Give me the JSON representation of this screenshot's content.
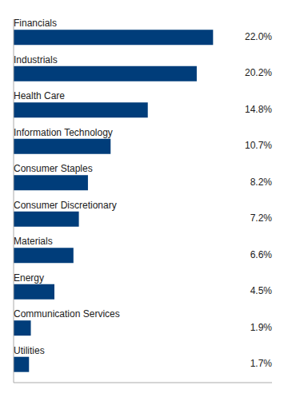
{
  "chart_data": {
    "type": "bar",
    "orientation": "horizontal",
    "categories": [
      "Financials",
      "Industrials",
      "Health Care",
      "Information Technology",
      "Consumer Staples",
      "Consumer Discretionary",
      "Materials",
      "Energy",
      "Communication Services",
      "Utilities"
    ],
    "values": [
      22.0,
      20.2,
      14.8,
      10.7,
      8.2,
      7.2,
      6.6,
      4.5,
      1.9,
      1.7
    ],
    "value_labels": [
      "22.0%",
      "20.2%",
      "14.8%",
      "10.7%",
      "8.2%",
      "7.2%",
      "6.6%",
      "4.5%",
      "1.9%",
      "1.7%"
    ],
    "data_labels": true,
    "color": "#003d7a",
    "xlim": [
      0,
      28.5
    ],
    "tick_labels": false,
    "grid": false
  }
}
